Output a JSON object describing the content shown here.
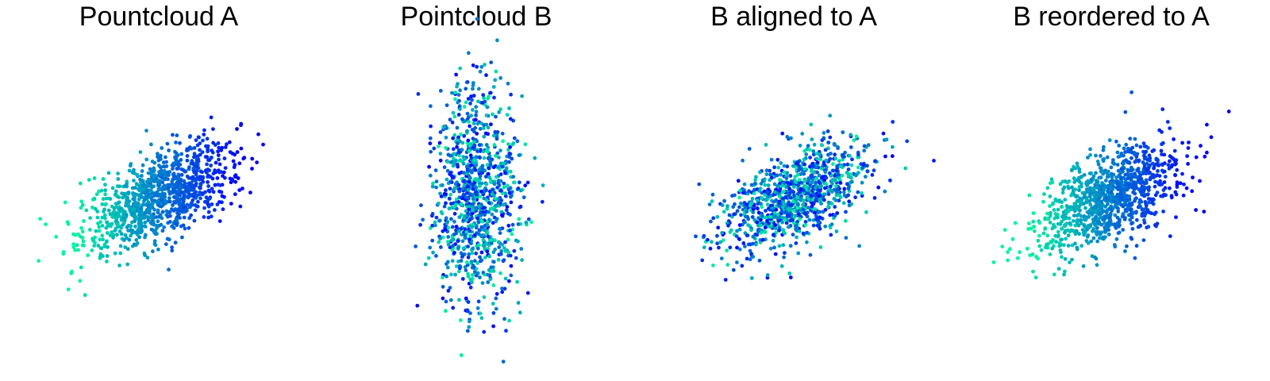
{
  "figure": {
    "titles": [
      "Pountcloud A",
      "Pointcloud B",
      "B aligned to A",
      "B reordered to A"
    ]
  },
  "chart_data": [
    {
      "type": "scatter",
      "title": "Pountcloud A",
      "description": "Elliptical cloud tilted upward to the right, colored green (left) to blue (right) along x.",
      "n_points": 1000,
      "mean": [
        0.0,
        0.0
      ],
      "cov": [
        [
          1.0,
          0.35
        ],
        [
          0.35,
          0.35
        ]
      ],
      "xlim": [
        -4.0,
        4.0
      ],
      "ylim": [
        -3.2,
        3.2
      ],
      "coloring": "by_x",
      "colormap": [
        "#00f5a0",
        "#0000ff"
      ],
      "axis": "off"
    },
    {
      "type": "scatter",
      "title": "Pointcloud B",
      "description": "Same points rotated ~90 degrees into a vertical cloud; colors mixed.",
      "n_points": 1000,
      "mean": [
        0.0,
        0.0
      ],
      "cov": [
        [
          0.3,
          0.0
        ],
        [
          0.0,
          1.3
        ]
      ],
      "xlim": [
        -4.0,
        4.0
      ],
      "ylim": [
        -3.2,
        3.2
      ],
      "coloring": "mixed",
      "colormap": [
        "#00f5a0",
        "#0000ff"
      ],
      "axis": "off"
    },
    {
      "type": "scatter",
      "title": "B aligned to A",
      "description": "B rotated back to match A's shape; colors still mixed.",
      "n_points": 1000,
      "mean": [
        0.0,
        0.0
      ],
      "cov": [
        [
          1.0,
          0.35
        ],
        [
          0.35,
          0.35
        ]
      ],
      "xlim": [
        -4.0,
        4.0
      ],
      "ylim": [
        -3.2,
        3.2
      ],
      "coloring": "mixed",
      "colormap": [
        "#00f5a0",
        "#0000ff"
      ],
      "axis": "off"
    },
    {
      "type": "scatter",
      "title": "B reordered to A",
      "description": "Aligned B with point order restored; gradient green-to-blue along x like A.",
      "n_points": 1000,
      "mean": [
        0.0,
        0.0
      ],
      "cov": [
        [
          1.0,
          0.35
        ],
        [
          0.35,
          0.35
        ]
      ],
      "xlim": [
        -4.0,
        4.0
      ],
      "ylim": [
        -3.2,
        3.2
      ],
      "coloring": "by_x",
      "colormap": [
        "#00f5a0",
        "#0000ff"
      ],
      "axis": "off"
    }
  ]
}
